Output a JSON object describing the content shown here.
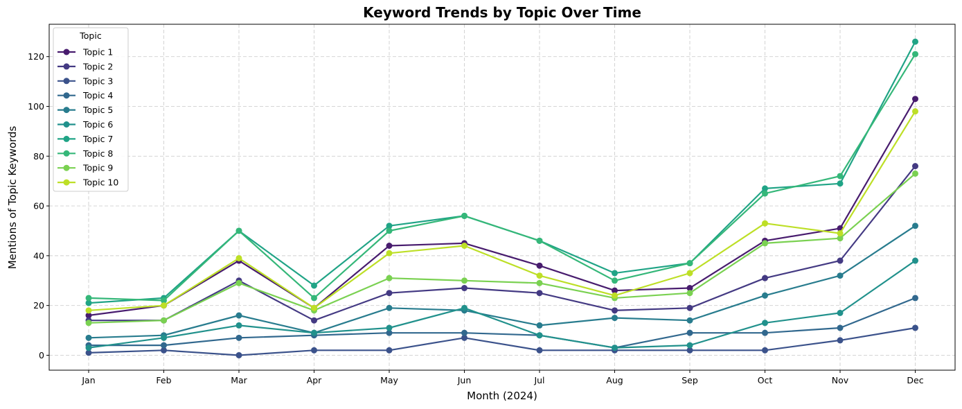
{
  "chart_data": {
    "type": "line",
    "title": "Keyword Trends by Topic Over Time",
    "xlabel": "Month (2024)",
    "ylabel": "Mentions of Topic Keywords",
    "categories": [
      "Jan",
      "Feb",
      "Mar",
      "Apr",
      "May",
      "Jun",
      "Jul",
      "Aug",
      "Sep",
      "Oct",
      "Nov",
      "Dec"
    ],
    "ylim": [
      -6,
      133
    ],
    "yticks": [
      0,
      20,
      40,
      60,
      80,
      100,
      120
    ],
    "grid": true,
    "legend": {
      "title": "Topic",
      "placement": "upper-left"
    },
    "series": [
      {
        "name": "Topic 1",
        "color": "#481c6e",
        "values": [
          16,
          20,
          38,
          19,
          44,
          45,
          36,
          26,
          27,
          46,
          51,
          103
        ]
      },
      {
        "name": "Topic 2",
        "color": "#443a83",
        "values": [
          14,
          14,
          30,
          14,
          25,
          27,
          25,
          18,
          19,
          31,
          38,
          76
        ]
      },
      {
        "name": "Topic 3",
        "color": "#3b528b",
        "values": [
          1,
          2,
          0,
          2,
          2,
          7,
          2,
          2,
          2,
          2,
          6,
          11
        ]
      },
      {
        "name": "Topic 4",
        "color": "#31688e",
        "values": [
          4,
          4,
          7,
          8,
          9,
          9,
          8,
          3,
          9,
          9,
          11,
          23
        ]
      },
      {
        "name": "Topic 5",
        "color": "#287c8e",
        "values": [
          7,
          8,
          16,
          9,
          19,
          18,
          12,
          15,
          14,
          24,
          32,
          52
        ]
      },
      {
        "name": "Topic 6",
        "color": "#21918c",
        "values": [
          3,
          7,
          12,
          9,
          11,
          19,
          8,
          3,
          4,
          13,
          17,
          38
        ]
      },
      {
        "name": "Topic 7",
        "color": "#20a486",
        "values": [
          21,
          23,
          50,
          28,
          52,
          56,
          46,
          33,
          37,
          67,
          69,
          126
        ]
      },
      {
        "name": "Topic 8",
        "color": "#35b779",
        "values": [
          23,
          22,
          50,
          23,
          50,
          56,
          46,
          30,
          37,
          65,
          72,
          121
        ]
      },
      {
        "name": "Topic 9",
        "color": "#7ad151",
        "values": [
          13,
          14,
          29,
          18,
          31,
          30,
          29,
          23,
          25,
          45,
          47,
          73
        ]
      },
      {
        "name": "Topic 10",
        "color": "#bddf26",
        "values": [
          18,
          20,
          39,
          19,
          41,
          44,
          32,
          24,
          33,
          53,
          49,
          98
        ]
      }
    ]
  }
}
